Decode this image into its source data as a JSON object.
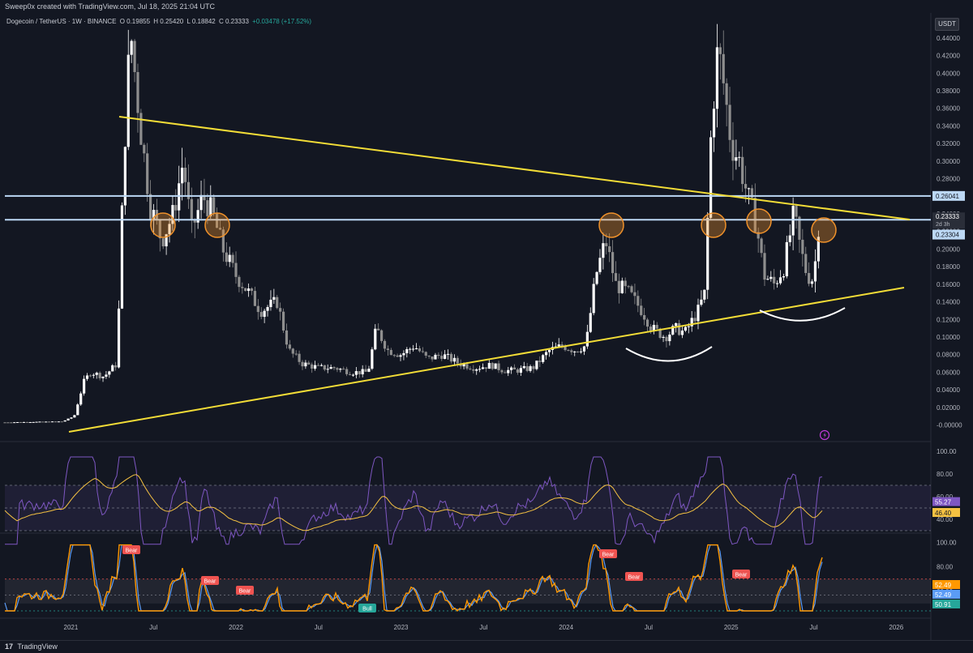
{
  "header": {
    "credit": "Sweep0x created with TradingView.com, Jul 18, 2025 21:04 UTC",
    "symbol": "Dogecoin / TetherUS · 1W · BINANCE",
    "open": "O 0.19855",
    "high": "H 0.25420",
    "low": "L 0.18842",
    "close": "C 0.23333",
    "change": "+0.03478 (+17.52%)"
  },
  "price_axis": {
    "currency": "USDT",
    "ticks": [
      "0.44000",
      "0.42000",
      "0.40000",
      "0.38000",
      "0.36000",
      "0.34000",
      "0.32000",
      "0.30000",
      "0.28000",
      "0.26000",
      "0.24000",
      "0.22000",
      "0.20000",
      "0.18000",
      "0.16000",
      "0.14000",
      "0.12000",
      "0.10000",
      "0.08000",
      "0.06000",
      "0.04000",
      "0.02000",
      "-0.00000"
    ],
    "label_levels": [
      0.26041,
      0.23333,
      0.23304
    ],
    "label_texts": [
      "0.26041",
      "0.23333",
      "2d 3h",
      "0.23304"
    ]
  },
  "time_axis": {
    "ticks": [
      "2021",
      "Jul",
      "2022",
      "Jul",
      "2023",
      "Jul",
      "2024",
      "Jul",
      "2025",
      "Jul",
      "2026"
    ]
  },
  "rsi_panel": {
    "ticks": [
      "100.00",
      "80.00",
      "60.00",
      "40.00"
    ],
    "value_labels": [
      "55.27",
      "46.40"
    ],
    "colors": {
      "rsi": "#7e57c2",
      "ma": "#f5c242",
      "band": "#7e57c2"
    }
  },
  "osc_panel": {
    "ticks": [
      "100.00",
      "80.00",
      "60.00"
    ],
    "value_labels": [
      "52.49",
      "52.49",
      "50.91"
    ],
    "signals": [
      {
        "label": "Bear",
        "type": "bear",
        "x_date": "2021-05"
      },
      {
        "label": "Bear",
        "type": "bear",
        "x_date": "2021-10"
      },
      {
        "label": "Bear",
        "type": "bear",
        "x_date": "2021-12"
      },
      {
        "label": "Bull",
        "type": "bull",
        "x_date": "2022-11"
      },
      {
        "label": "Bear",
        "type": "bear",
        "x_date": "2024-04"
      },
      {
        "label": "Bear",
        "type": "bear",
        "x_date": "2024-06"
      },
      {
        "label": "Bear",
        "type": "bear",
        "x_date": "2025-02"
      }
    ]
  },
  "drawings": {
    "horizontal_levels": [
      0.26041,
      0.23333
    ],
    "line_color_horizontal": "#bcd8f5",
    "line_color_trend": "#f2dc37",
    "circle_color": "#f0922b"
  },
  "footer": {
    "brand": "TradingView",
    "logo": "17"
  },
  "colors": {
    "background": "#131722",
    "candle": "#ffffff",
    "candle_down": "#8e8e8e",
    "bull": "#26a69a",
    "bear": "#ef5350"
  }
}
